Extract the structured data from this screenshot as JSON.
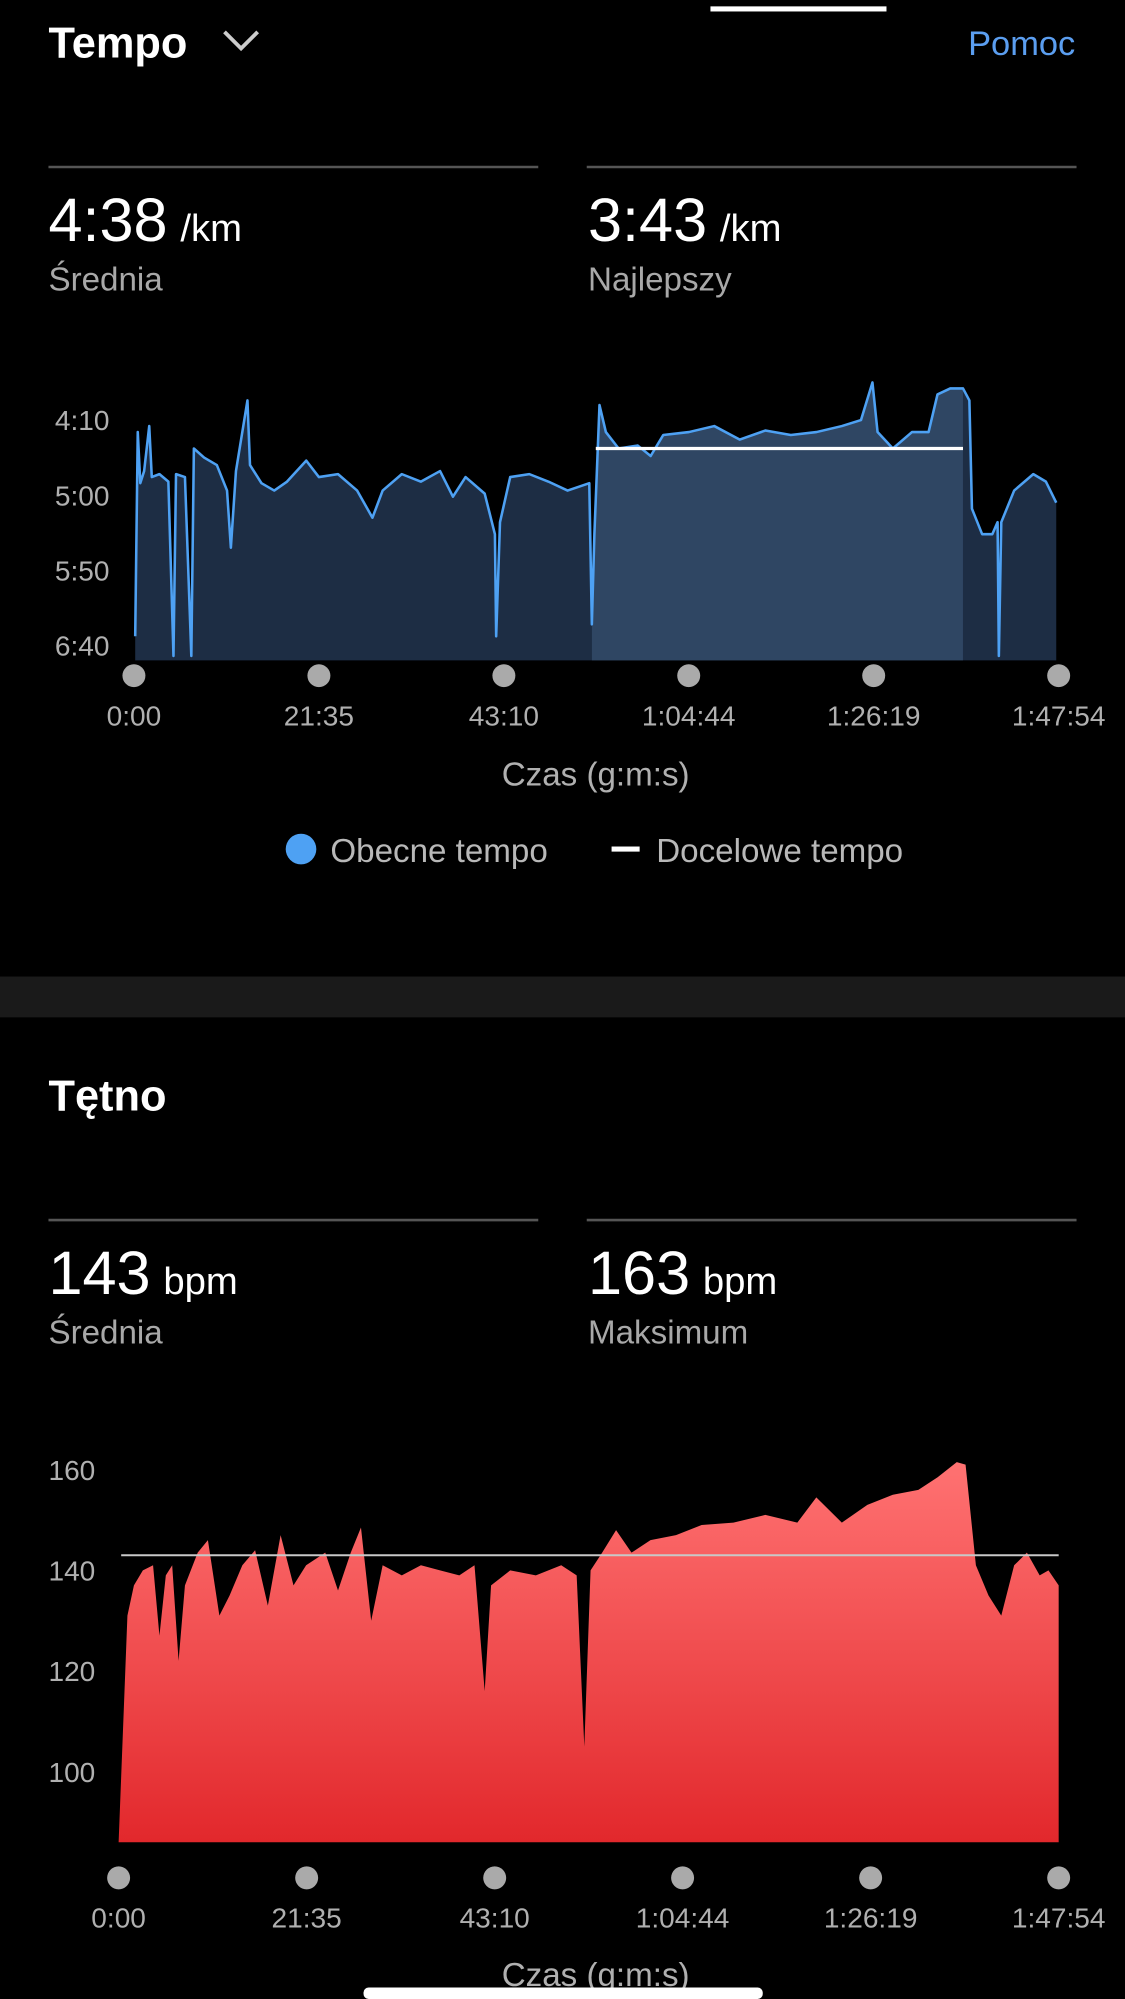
{
  "header": {
    "title": "Tempo",
    "help": "Pomoc"
  },
  "pace_stats": {
    "average": {
      "value": "4:38",
      "unit": "/km",
      "label": "Średnia"
    },
    "best": {
      "value": "3:43",
      "unit": "/km",
      "label": "Najlepszy"
    }
  },
  "hr_section": {
    "title": "Tętno"
  },
  "hr_stats": {
    "average": {
      "value": 143,
      "unit": "bpm",
      "label": "Średnia"
    },
    "max": {
      "value": 163,
      "unit": "bpm",
      "label": "Maksimum"
    }
  },
  "chart_data": [
    {
      "type": "area",
      "x_label": "Czas (g:m:s)",
      "xlim": [
        0,
        6474
      ],
      "xticks": [
        {
          "value": 0,
          "label": "0:00"
        },
        {
          "value": 1295,
          "label": "21:35"
        },
        {
          "value": 2590,
          "label": "43:10"
        },
        {
          "value": 3884,
          "label": "1:04:44"
        },
        {
          "value": 5179,
          "label": "1:26:19"
        },
        {
          "value": 6474,
          "label": "1:47:54"
        }
      ],
      "ylim": [
        225,
        410
      ],
      "y_reversed": true,
      "yticks": [
        {
          "value": 250,
          "label": "4:10"
        },
        {
          "value": 300,
          "label": "5:00"
        },
        {
          "value": 350,
          "label": "5:50"
        },
        {
          "value": 400,
          "label": "6:40"
        }
      ],
      "legend": true,
      "series": [
        {
          "name": "Obecne tempo",
          "color": "#4ea1f3",
          "mark": "area",
          "x": [
            9,
            27,
            45,
            71,
            107,
            125,
            179,
            241,
            277,
            295,
            357,
            402,
            420,
            491,
            580,
            652,
            679,
            714,
            795,
            813,
            893,
            982,
            1072,
            1206,
            1295,
            1429,
            1563,
            1670,
            1741,
            1875,
            2009,
            2143,
            2233,
            2322,
            2456,
            2527,
            2536,
            2563,
            2634,
            2768,
            2902,
            3036,
            3188,
            3206,
            3224,
            3259,
            3304,
            3393,
            3527,
            3617,
            3706,
            3885,
            4063,
            4242,
            4420,
            4599,
            4778,
            4956,
            5090,
            5170,
            5206,
            5313,
            5447,
            5563,
            5626,
            5715,
            5804,
            5849,
            5867,
            5938,
            6010,
            6046,
            6055,
            6072,
            6162,
            6296,
            6385,
            6457
          ],
          "values": [
            394,
            258,
            292,
            284,
            254,
            288,
            286,
            291,
            407,
            286,
            288,
            407,
            269,
            275,
            280,
            297,
            335,
            284,
            237,
            280,
            292,
            297,
            291,
            277,
            288,
            286,
            297,
            315,
            297,
            286,
            291,
            284,
            301,
            288,
            299,
            326,
            394,
            318,
            288,
            286,
            291,
            297,
            292,
            386,
            326,
            240,
            258,
            269,
            267,
            274,
            260,
            258,
            254,
            263,
            257,
            260,
            258,
            254,
            250,
            225,
            258,
            269,
            258,
            258,
            233,
            229,
            229,
            237,
            309,
            326,
            326,
            318,
            407,
            318,
            297,
            286,
            291,
            305
          ]
        },
        {
          "name": "Docelowe tempo",
          "color": "#ffffff",
          "mark": "line",
          "x": [
            3233,
            5804
          ],
          "values": [
            269,
            269
          ]
        }
      ]
    },
    {
      "type": "area",
      "x_label": "Czas (g:m:s)",
      "xlim": [
        0,
        6474
      ],
      "xticks": [
        {
          "value": 0,
          "label": "0:00"
        },
        {
          "value": 1295,
          "label": "21:35"
        },
        {
          "value": 2590,
          "label": "43:10"
        },
        {
          "value": 3884,
          "label": "1:04:44"
        },
        {
          "value": 5179,
          "label": "1:26:19"
        },
        {
          "value": 6474,
          "label": "1:47:54"
        }
      ],
      "ylim": [
        86,
        164
      ],
      "yticks": [
        160,
        140,
        120,
        100
      ],
      "average_line": true,
      "color": "#f25a5a",
      "x": [
        0,
        35,
        61,
        105,
        167,
        237,
        281,
        325,
        369,
        413,
        457,
        545,
        615,
        694,
        764,
        852,
        940,
        1028,
        1116,
        1204,
        1291,
        1423,
        1511,
        1599,
        1669,
        1739,
        1818,
        1950,
        2082,
        2214,
        2346,
        2451,
        2521,
        2565,
        2697,
        2873,
        3048,
        3154,
        3207,
        3250,
        3330,
        3426,
        3532,
        3663,
        3839,
        4015,
        4234,
        4454,
        4674,
        4805,
        4981,
        5156,
        5332,
        5508,
        5640,
        5772,
        5833,
        5904,
        5991,
        6079,
        6167,
        6255,
        6343,
        6404,
        6474
      ],
      "values": [
        86,
        112,
        131,
        137,
        140,
        141,
        127,
        139,
        141,
        122,
        137,
        143.5,
        146,
        131,
        135,
        141,
        144,
        133,
        147,
        137,
        141,
        143.5,
        136,
        143.5,
        148.5,
        130,
        141,
        139,
        141,
        140,
        139,
        141,
        116,
        137,
        140,
        139,
        141,
        139,
        105,
        140,
        143.5,
        148,
        143.5,
        146,
        147,
        149,
        149.5,
        151,
        149.5,
        154.5,
        149.5,
        153,
        155,
        156,
        158.5,
        161.5,
        161,
        141,
        135,
        131,
        141,
        143.5,
        139,
        140,
        137
      ]
    }
  ]
}
